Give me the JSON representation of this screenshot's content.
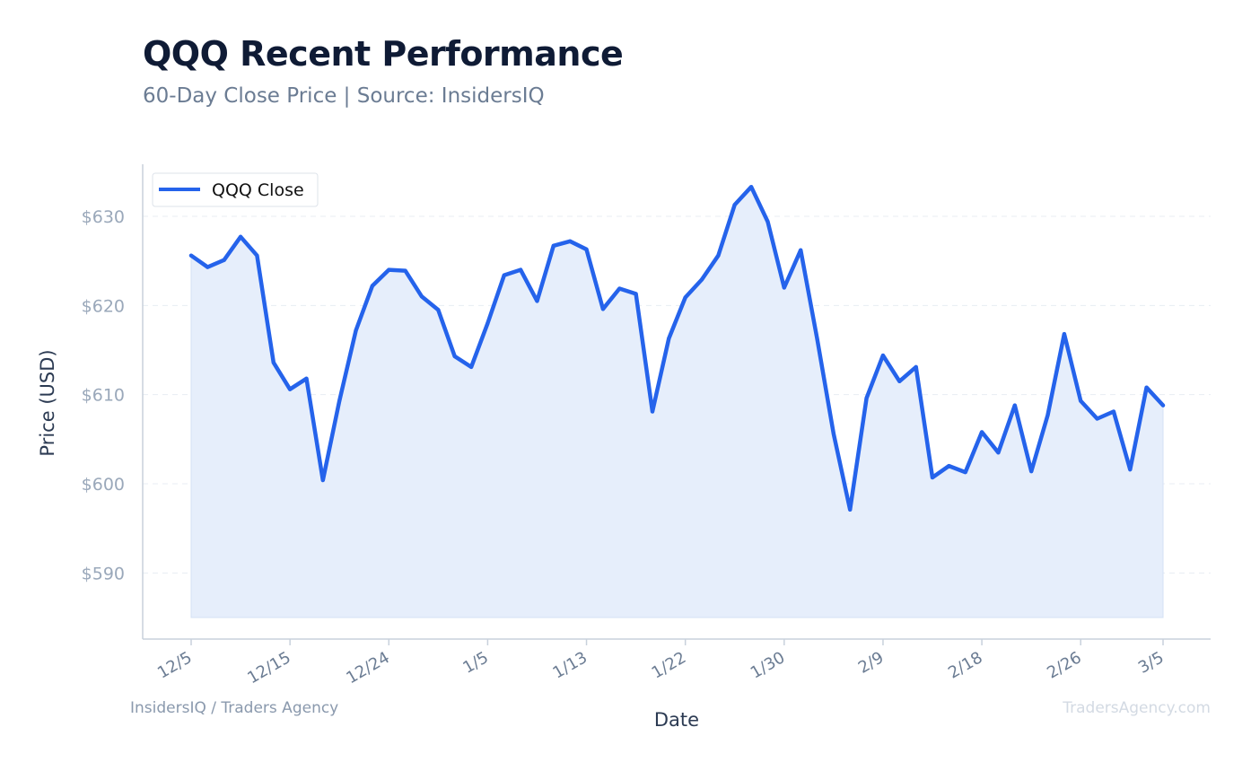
{
  "header": {
    "title": "QQQ Recent Performance",
    "subtitle": "60-Day Close Price | Source: InsidersIQ"
  },
  "footer": {
    "left": "InsidersIQ / Traders Agency",
    "right": "TradersAgency.com"
  },
  "colors": {
    "line": "#2563eb",
    "fill": "#e6eefb",
    "grid": "#e8edf3",
    "axis": "#c8d1dc"
  },
  "chart_data": {
    "type": "area",
    "xlabel": "Date",
    "ylabel": "Price (USD)",
    "ylim": [
      585,
      636
    ],
    "yticks": [
      590,
      600,
      610,
      620,
      630
    ],
    "ytick_labels": [
      "$590",
      "$600",
      "$610",
      "$620",
      "$630"
    ],
    "xtick_labels": [
      "12/5",
      "12/15",
      "12/24",
      "1/5",
      "1/13",
      "1/22",
      "1/30",
      "2/9",
      "2/18",
      "2/26",
      "3/5"
    ],
    "xtick_index": [
      0,
      6,
      12,
      18,
      24,
      30,
      36,
      42,
      48,
      54,
      59
    ],
    "grid": true,
    "legend_position": "top-left",
    "series": [
      {
        "name": "QQQ Close",
        "values": [
          625.6,
          624.3,
          625.1,
          627.7,
          625.6,
          613.6,
          610.6,
          611.8,
          600.4,
          609.3,
          617.2,
          622.2,
          624.0,
          623.9,
          621.0,
          619.5,
          614.3,
          613.1,
          618.0,
          623.4,
          624.0,
          620.5,
          626.7,
          627.2,
          626.3,
          619.6,
          621.9,
          621.3,
          608.1,
          616.3,
          620.9,
          622.9,
          625.6,
          631.3,
          633.3,
          629.4,
          622.0,
          626.2,
          616.3,
          605.6,
          597.1,
          609.6,
          614.4,
          611.5,
          613.1,
          600.7,
          602.0,
          601.3,
          605.8,
          603.5,
          608.8,
          601.4,
          607.7,
          616.8,
          609.3,
          607.3,
          608.1,
          601.6,
          610.8,
          608.8
        ]
      }
    ]
  }
}
